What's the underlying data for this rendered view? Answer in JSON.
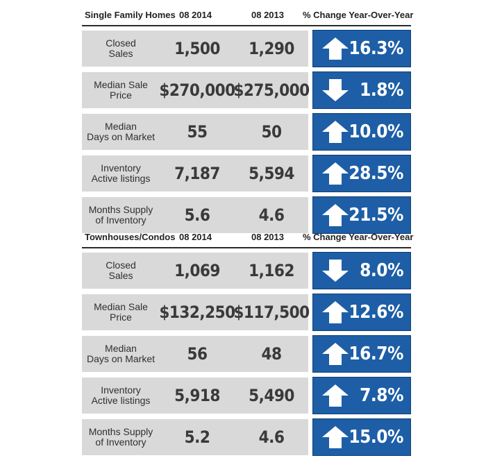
{
  "sections": [
    {
      "title": "Single Family Homes",
      "col_2014": "08 2014",
      "col_2013": "08 2013",
      "col_change": "% Change Year-Over-Year",
      "rows": [
        {
          "label": "Closed\nSales",
          "v2014": "1,500",
          "v2013": "1,290",
          "direction": "up",
          "change": "16.3%"
        },
        {
          "label": "Median Sale\nPrice",
          "v2014": "$270,000",
          "v2013": "$275,000",
          "direction": "down",
          "change": "1.8%"
        },
        {
          "label": "Median\nDays on Market",
          "v2014": "55",
          "v2013": "50",
          "direction": "up",
          "change": "10.0%"
        },
        {
          "label": "Inventory\nActive listings",
          "v2014": "7,187",
          "v2013": "5,594",
          "direction": "up",
          "change": "28.5%"
        },
        {
          "label": "Months Supply\nof Inventory",
          "v2014": "5.6",
          "v2013": "4.6",
          "direction": "up",
          "change": "21.5%"
        }
      ]
    },
    {
      "title": "Townhouses/Condos",
      "col_2014": "08 2014",
      "col_2013": "08 2013",
      "col_change": "% Change Year-Over-Year",
      "rows": [
        {
          "label": "Closed\nSales",
          "v2014": "1,069",
          "v2013": "1,162",
          "direction": "down",
          "change": "8.0%"
        },
        {
          "label": "Median Sale\nPrice",
          "v2014": "$132,250",
          "v2013": "$117,500",
          "direction": "up",
          "change": "12.6%"
        },
        {
          "label": "Median\nDays on Market",
          "v2014": "56",
          "v2013": "48",
          "direction": "up",
          "change": "16.7%"
        },
        {
          "label": "Inventory\nActive listings",
          "v2014": "5,918",
          "v2013": "5,490",
          "direction": "up",
          "change": "7.8%"
        },
        {
          "label": "Months Supply\nof Inventory",
          "v2014": "5.2",
          "v2013": "4.6",
          "direction": "up",
          "change": "15.0%"
        }
      ]
    }
  ],
  "colors": {
    "accent_blue": "#1d5ea6",
    "row_gray": "#d9d9d9"
  },
  "icons": {
    "up": "arrow-up-icon",
    "down": "arrow-down-icon"
  }
}
